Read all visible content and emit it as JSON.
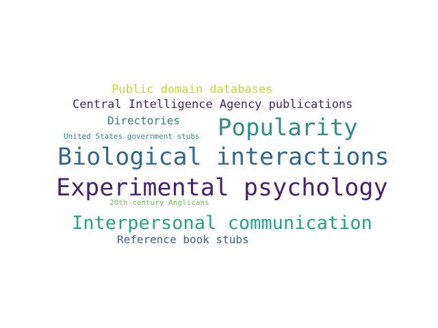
{
  "colors": {
    "background": "#ffffff",
    "yellow_green": "#c2df23",
    "dark_purple": "#482173",
    "teal": "#2e8f8c",
    "blue_teal": "#31688e",
    "light_teal": "#2c8a8c",
    "green_teal": "#21a685",
    "slate_blue": "#3f5f8e"
  },
  "words": [
    {
      "text": "Public domain databases",
      "color": "#c2df23"
    },
    {
      "text": "Central Intelligence Agency publications",
      "color": "#482173"
    },
    {
      "text": "Directories",
      "color": "#2e7e8e"
    },
    {
      "text": "Popularity",
      "color": "#2e8f8c"
    },
    {
      "text": "United States government stubs",
      "color": "#2c8a8c"
    },
    {
      "text": "Biological interactions",
      "color": "#31688e"
    },
    {
      "text": "Experimental psychology",
      "color": "#482173"
    },
    {
      "text": "20th-century Anglicans",
      "color": "#6ccd5a"
    },
    {
      "text": "Interpersonal communication",
      "color": "#21a685"
    },
    {
      "text": "Reference book stubs",
      "color": "#3f5f8e"
    }
  ]
}
